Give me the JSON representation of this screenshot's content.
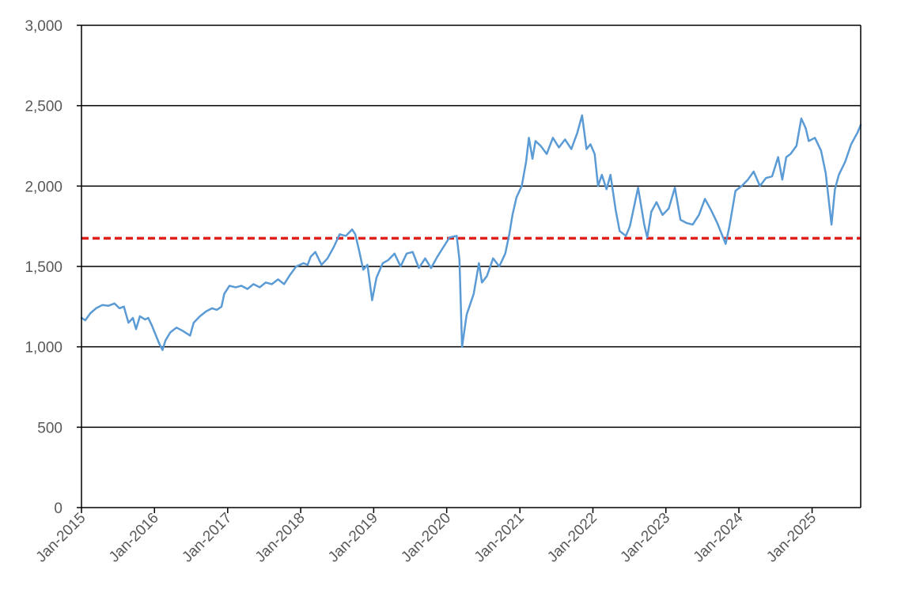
{
  "chart_data": {
    "type": "line",
    "title": "",
    "xlabel": "",
    "ylabel": "",
    "x_range": [
      "2015-01-01",
      "2025-09-01"
    ],
    "ylim": [
      0,
      3000
    ],
    "y_ticks": [
      0,
      500,
      1000,
      1500,
      2000,
      2500,
      3000
    ],
    "y_tick_labels": [
      "0",
      "500",
      "1,000",
      "1,500",
      "2,000",
      "2,500",
      "3,000"
    ],
    "x_ticks": [
      "2015-01-01",
      "2016-01-01",
      "2017-01-01",
      "2018-01-01",
      "2019-01-01",
      "2020-01-01",
      "2021-01-01",
      "2022-01-01",
      "2023-01-01",
      "2024-01-01",
      "2025-01-01"
    ],
    "x_tick_labels": [
      "Jan-2015",
      "Jan-2016",
      "Jan-2017",
      "Jan-2018",
      "Jan-2019",
      "Jan-2020",
      "Jan-2021",
      "Jan-2022",
      "Jan-2023",
      "Jan-2024",
      "Jan-2025"
    ],
    "grid": "horizontal",
    "legend": "none",
    "reference_line": {
      "y": 1675,
      "color": "#e0201b",
      "style": "dashed"
    },
    "series": [
      {
        "color": "#5b9bd5",
        "points": [
          [
            "2015-01-01",
            1180
          ],
          [
            "2015-01-20",
            1165
          ],
          [
            "2015-02-15",
            1210
          ],
          [
            "2015-03-15",
            1240
          ],
          [
            "2015-04-15",
            1260
          ],
          [
            "2015-05-15",
            1255
          ],
          [
            "2015-06-15",
            1270
          ],
          [
            "2015-07-10",
            1240
          ],
          [
            "2015-08-01",
            1250
          ],
          [
            "2015-08-24",
            1150
          ],
          [
            "2015-09-15",
            1180
          ],
          [
            "2015-10-01",
            1110
          ],
          [
            "2015-10-20",
            1190
          ],
          [
            "2015-11-15",
            1170
          ],
          [
            "2015-12-01",
            1180
          ],
          [
            "2015-12-20",
            1130
          ],
          [
            "2016-01-05",
            1080
          ],
          [
            "2016-01-25",
            1020
          ],
          [
            "2016-02-10",
            980
          ],
          [
            "2016-02-25",
            1040
          ],
          [
            "2016-03-20",
            1090
          ],
          [
            "2016-04-20",
            1120
          ],
          [
            "2016-05-20",
            1100
          ],
          [
            "2016-06-27",
            1070
          ],
          [
            "2016-07-15",
            1150
          ],
          [
            "2016-08-15",
            1190
          ],
          [
            "2016-09-15",
            1220
          ],
          [
            "2016-10-15",
            1240
          ],
          [
            "2016-11-08",
            1230
          ],
          [
            "2016-12-01",
            1250
          ],
          [
            "2016-12-15",
            1330
          ],
          [
            "2017-01-10",
            1380
          ],
          [
            "2017-02-10",
            1370
          ],
          [
            "2017-03-10",
            1380
          ],
          [
            "2017-04-10",
            1360
          ],
          [
            "2017-05-10",
            1390
          ],
          [
            "2017-06-10",
            1370
          ],
          [
            "2017-07-10",
            1400
          ],
          [
            "2017-08-10",
            1390
          ],
          [
            "2017-09-10",
            1420
          ],
          [
            "2017-10-10",
            1390
          ],
          [
            "2017-11-10",
            1450
          ],
          [
            "2017-12-10",
            1500
          ],
          [
            "2018-01-15",
            1520
          ],
          [
            "2018-02-05",
            1510
          ],
          [
            "2018-02-20",
            1560
          ],
          [
            "2018-03-15",
            1590
          ],
          [
            "2018-04-15",
            1510
          ],
          [
            "2018-05-15",
            1550
          ],
          [
            "2018-06-15",
            1620
          ],
          [
            "2018-07-15",
            1700
          ],
          [
            "2018-08-15",
            1690
          ],
          [
            "2018-09-15",
            1730
          ],
          [
            "2018-10-01",
            1700
          ],
          [
            "2018-10-20",
            1600
          ],
          [
            "2018-11-10",
            1480
          ],
          [
            "2018-12-01",
            1510
          ],
          [
            "2018-12-24",
            1290
          ],
          [
            "2019-01-15",
            1430
          ],
          [
            "2019-02-15",
            1520
          ],
          [
            "2019-03-15",
            1540
          ],
          [
            "2019-04-15",
            1580
          ],
          [
            "2019-05-15",
            1500
          ],
          [
            "2019-06-15",
            1580
          ],
          [
            "2019-07-15",
            1590
          ],
          [
            "2019-08-15",
            1490
          ],
          [
            "2019-09-15",
            1550
          ],
          [
            "2019-10-15",
            1490
          ],
          [
            "2019-11-15",
            1560
          ],
          [
            "2019-12-15",
            1620
          ],
          [
            "2020-01-15",
            1680
          ],
          [
            "2020-02-20",
            1690
          ],
          [
            "2020-03-05",
            1540
          ],
          [
            "2020-03-18",
            1000
          ],
          [
            "2020-04-10",
            1200
          ],
          [
            "2020-05-15",
            1330
          ],
          [
            "2020-06-10",
            1520
          ],
          [
            "2020-06-25",
            1400
          ],
          [
            "2020-07-20",
            1440
          ],
          [
            "2020-08-20",
            1550
          ],
          [
            "2020-09-20",
            1500
          ],
          [
            "2020-10-20",
            1580
          ],
          [
            "2020-11-09",
            1700
          ],
          [
            "2020-11-25",
            1820
          ],
          [
            "2020-12-15",
            1930
          ],
          [
            "2021-01-10",
            2000
          ],
          [
            "2021-02-01",
            2150
          ],
          [
            "2021-02-15",
            2300
          ],
          [
            "2021-03-05",
            2170
          ],
          [
            "2021-03-20",
            2280
          ],
          [
            "2021-04-15",
            2250
          ],
          [
            "2021-05-15",
            2200
          ],
          [
            "2021-06-15",
            2300
          ],
          [
            "2021-07-15",
            2240
          ],
          [
            "2021-08-15",
            2290
          ],
          [
            "2021-09-15",
            2230
          ],
          [
            "2021-10-15",
            2330
          ],
          [
            "2021-11-08",
            2440
          ],
          [
            "2021-11-30",
            2230
          ],
          [
            "2021-12-20",
            2260
          ],
          [
            "2022-01-10",
            2200
          ],
          [
            "2022-01-27",
            2000
          ],
          [
            "2022-02-15",
            2070
          ],
          [
            "2022-03-10",
            1980
          ],
          [
            "2022-03-30",
            2070
          ],
          [
            "2022-04-25",
            1850
          ],
          [
            "2022-05-15",
            1720
          ],
          [
            "2022-06-15",
            1690
          ],
          [
            "2022-07-05",
            1750
          ],
          [
            "2022-08-15",
            1990
          ],
          [
            "2022-09-15",
            1760
          ],
          [
            "2022-09-30",
            1680
          ],
          [
            "2022-10-20",
            1840
          ],
          [
            "2022-11-15",
            1900
          ],
          [
            "2022-12-15",
            1820
          ],
          [
            "2023-01-15",
            1860
          ],
          [
            "2023-02-15",
            1990
          ],
          [
            "2023-03-15",
            1790
          ],
          [
            "2023-04-15",
            1770
          ],
          [
            "2023-05-15",
            1760
          ],
          [
            "2023-06-15",
            1820
          ],
          [
            "2023-07-15",
            1920
          ],
          [
            "2023-08-15",
            1850
          ],
          [
            "2023-09-15",
            1770
          ],
          [
            "2023-10-27",
            1640
          ],
          [
            "2023-11-15",
            1750
          ],
          [
            "2023-12-15",
            1970
          ],
          [
            "2024-01-15",
            2000
          ],
          [
            "2024-02-15",
            2040
          ],
          [
            "2024-03-15",
            2090
          ],
          [
            "2024-04-15",
            2000
          ],
          [
            "2024-05-15",
            2050
          ],
          [
            "2024-06-15",
            2060
          ],
          [
            "2024-07-15",
            2180
          ],
          [
            "2024-08-05",
            2040
          ],
          [
            "2024-08-25",
            2180
          ],
          [
            "2024-09-15",
            2200
          ],
          [
            "2024-10-15",
            2250
          ],
          [
            "2024-11-08",
            2420
          ],
          [
            "2024-11-30",
            2360
          ],
          [
            "2024-12-15",
            2280
          ],
          [
            "2025-01-15",
            2300
          ],
          [
            "2025-02-15",
            2220
          ],
          [
            "2025-03-10",
            2080
          ],
          [
            "2025-04-08",
            1760
          ],
          [
            "2025-04-25",
            1980
          ],
          [
            "2025-05-15",
            2070
          ],
          [
            "2025-06-15",
            2150
          ],
          [
            "2025-07-15",
            2260
          ],
          [
            "2025-08-15",
            2330
          ],
          [
            "2025-09-01",
            2380
          ]
        ]
      }
    ]
  }
}
